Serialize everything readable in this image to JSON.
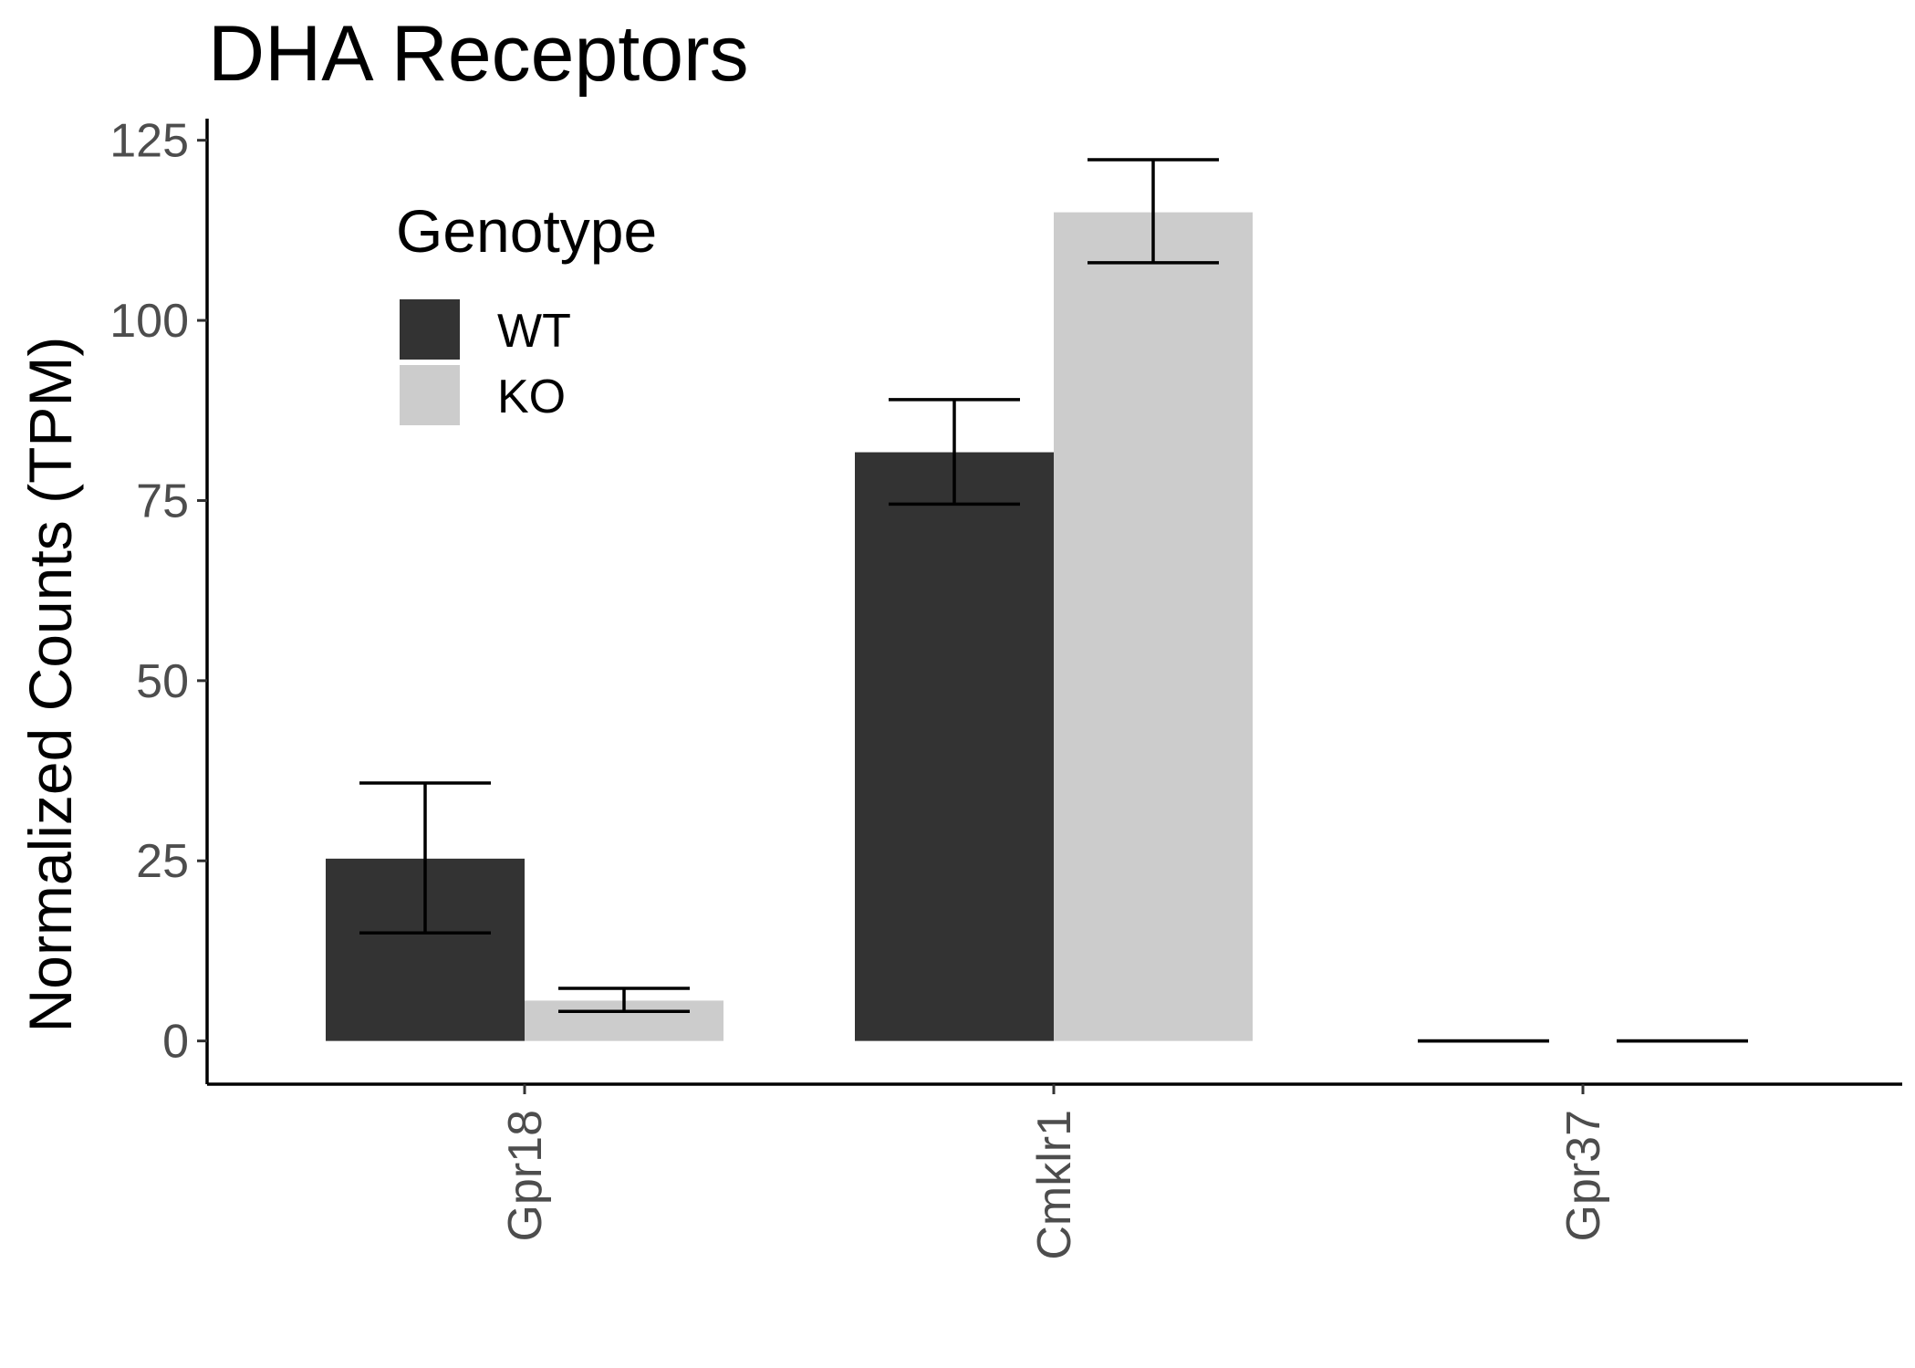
{
  "chart_data": {
    "type": "bar",
    "title": "DHA Receptors",
    "xlabel": "",
    "ylabel": "Normalized Counts (TPM)",
    "categories": [
      "Gpr18",
      "Cmklr1",
      "Gpr37"
    ],
    "series": [
      {
        "name": "WT",
        "color": "#333333",
        "values": [
          25.3,
          81.7,
          0
        ],
        "error_low": [
          15.0,
          74.5,
          0
        ],
        "error_high": [
          35.8,
          89.0,
          0
        ]
      },
      {
        "name": "KO",
        "color": "#cccccc",
        "values": [
          5.6,
          115.0,
          0
        ],
        "error_low": [
          4.1,
          108.0,
          0
        ],
        "error_high": [
          7.3,
          122.3,
          0
        ]
      }
    ],
    "ylim": [
      -6,
      128
    ],
    "yticks": [
      "0",
      "25",
      "50",
      "75",
      "100",
      "125"
    ],
    "ytick_values": [
      0,
      25,
      50,
      75,
      100,
      125
    ],
    "legend": {
      "title": "Genotype",
      "placement": "top-left",
      "entries": [
        "WT",
        "KO"
      ]
    },
    "grid": false
  }
}
